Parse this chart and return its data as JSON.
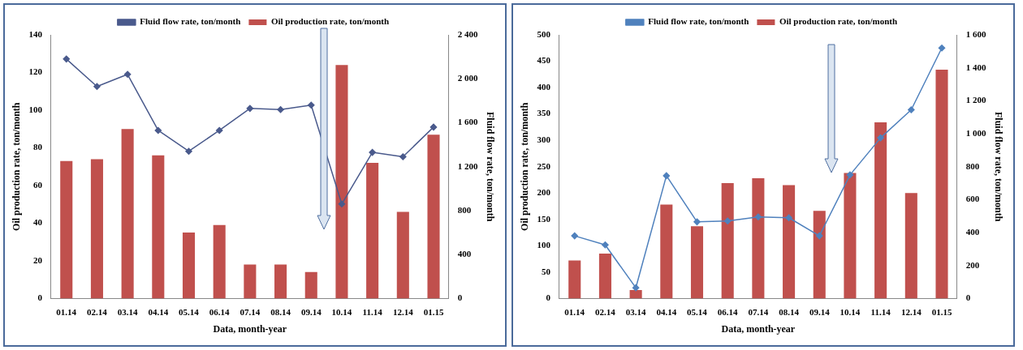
{
  "chart_data": [
    {
      "type": "bar",
      "categories": [
        "01.14",
        "02.14",
        "03.14",
        "04.14",
        "05.14",
        "06.14",
        "07.14",
        "08.14",
        "09.14",
        "10.14",
        "11.14",
        "12.14",
        "01.15"
      ],
      "series": [
        {
          "name": "Oil production rate, ton/month",
          "color": "#c0504d",
          "values": [
            73,
            74,
            90,
            76,
            35,
            39,
            18,
            18,
            14,
            124,
            72,
            46,
            87
          ]
        },
        {
          "name": "Fluid flow rate, ton/month",
          "type": "line",
          "axis": "y2",
          "color": "#4a5a8c",
          "values": [
            2180,
            1930,
            2040,
            1530,
            1340,
            1530,
            1730,
            1720,
            1760,
            860,
            1330,
            1290,
            1560
          ]
        }
      ],
      "xlabel": "Data, month-year",
      "ylabel": "Oil production rate, ton/month",
      "y2label": "Fluid flow rate, ton/month",
      "ylim": [
        0,
        140
      ],
      "yticks": [
        0,
        20,
        40,
        60,
        80,
        100,
        120,
        140
      ],
      "y2lim": [
        0,
        2400
      ],
      "y2ticks": [
        0,
        400,
        800,
        {
          "value": 1200,
          "label": "1 200"
        },
        {
          "value": 1600,
          "label": "1 600"
        },
        {
          "value": 2000,
          "label": "2 000"
        },
        {
          "value": 2400,
          "label": "2 400"
        }
      ],
      "legend": "top",
      "marker": "diamond",
      "grid": false
    },
    {
      "type": "bar",
      "categories": [
        "01.14",
        "02.14",
        "03.14",
        "04.14",
        "05.14",
        "06.14",
        "07.14",
        "08.14",
        "09.14",
        "10.14",
        "11.14",
        "12.14",
        "01.15"
      ],
      "series": [
        {
          "name": "Oil production rate, ton/month",
          "color": "#c0504d",
          "values": [
            72,
            85,
            16,
            178,
            137,
            219,
            228,
            215,
            166,
            238,
            334,
            200,
            434
          ]
        },
        {
          "name": "Fluid flow rate, ton/month",
          "type": "line",
          "axis": "y2",
          "color": "#4f81bd",
          "values": [
            380,
            325,
            65,
            745,
            465,
            470,
            495,
            490,
            380,
            750,
            975,
            1145,
            1520
          ]
        }
      ],
      "xlabel": "Data, month-year",
      "ylabel": "Oil production rate, ton/month",
      "y2label": "Fluid flow rate, ton/month",
      "ylim": [
        0,
        500
      ],
      "yticks": [
        0,
        50,
        100,
        150,
        200,
        250,
        300,
        350,
        400,
        450,
        500
      ],
      "y2lim": [
        0,
        1600
      ],
      "y2ticks": [
        0,
        200,
        400,
        600,
        800,
        {
          "value": 1000,
          "label": "1 000"
        },
        {
          "value": 1200,
          "label": "1 200"
        },
        {
          "value": 1400,
          "label": "1 400"
        },
        {
          "value": 1600,
          "label": "1 600"
        }
      ],
      "legend": "top",
      "marker": "diamond",
      "grid": false
    }
  ]
}
